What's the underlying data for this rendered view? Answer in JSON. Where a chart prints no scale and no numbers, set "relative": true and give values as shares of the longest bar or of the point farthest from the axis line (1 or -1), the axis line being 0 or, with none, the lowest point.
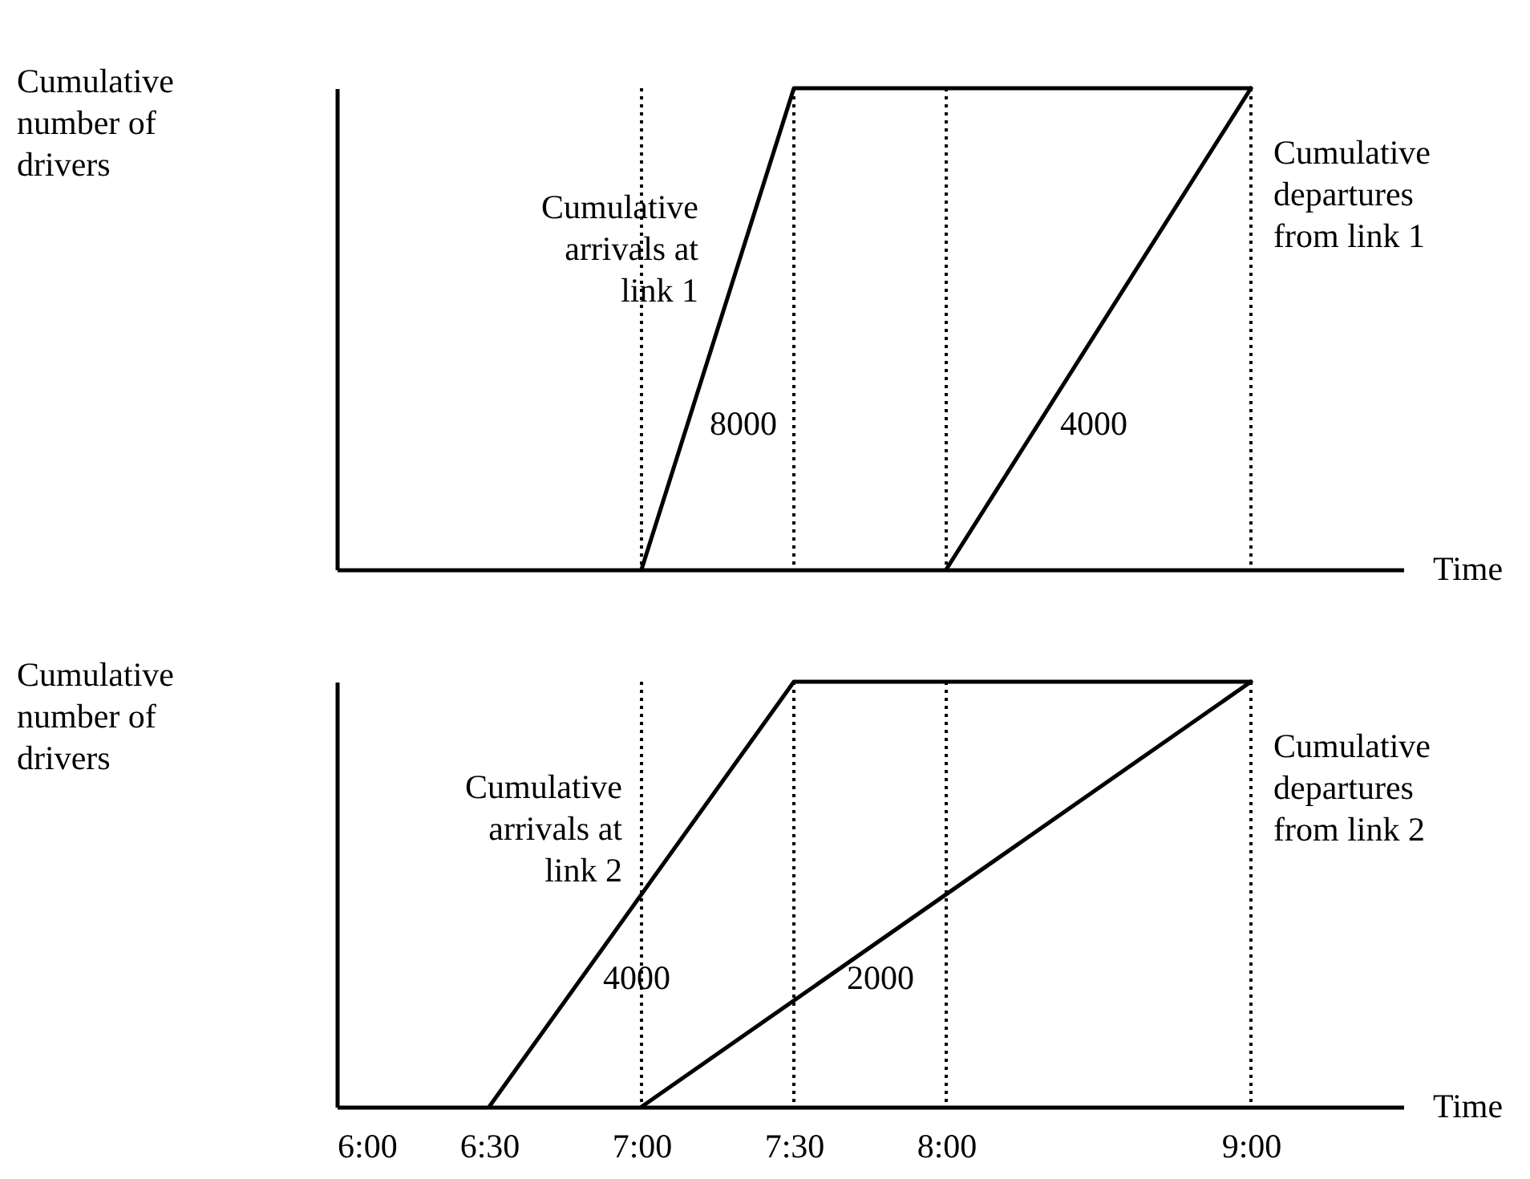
{
  "chart_data": [
    {
      "type": "line",
      "relative": true,
      "xlabel": "Time",
      "ylabel": "Cumulative number of drivers",
      "xlim": [
        6,
        9.5
      ],
      "tick_labels": false,
      "grid": false,
      "legend": false,
      "marker": "none",
      "line_style": "solid",
      "series": [
        {
          "name": "Cumulative arrivals at link 1",
          "color": "#000000",
          "x": [
            7,
            7.5,
            9
          ],
          "values": [
            0,
            1,
            1
          ]
        },
        {
          "name": "Cumulative departures from link 1",
          "color": "#000000",
          "x": [
            8,
            9
          ],
          "values": [
            0,
            1
          ]
        }
      ],
      "ref_lines": [
        {
          "axis": "x",
          "value": 7,
          "line_style": "dotted",
          "color": "#000000"
        },
        {
          "axis": "x",
          "value": 7.5,
          "line_style": "dotted",
          "color": "#000000"
        },
        {
          "axis": "x",
          "value": 8,
          "line_style": "dotted",
          "color": "#000000"
        },
        {
          "axis": "x",
          "value": 9,
          "line_style": "dotted",
          "color": "#000000"
        }
      ],
      "annotations": [
        "8000",
        "4000"
      ]
    },
    {
      "type": "line",
      "relative": true,
      "xlabel": "Time",
      "ylabel": "Cumulative number of drivers",
      "xlim": [
        6,
        9.5
      ],
      "xticks": [
        {
          "value": 6,
          "label": "6:00"
        },
        {
          "value": 6.5,
          "label": "6:30"
        },
        {
          "value": 7,
          "label": "7:00"
        },
        {
          "value": 7.5,
          "label": "7:30"
        },
        {
          "value": 8,
          "label": "8:00"
        },
        {
          "value": 9,
          "label": "9:00"
        }
      ],
      "tick_labels": "x",
      "grid": false,
      "legend": false,
      "marker": "none",
      "line_style": "solid",
      "series": [
        {
          "name": "Cumulative arrivals at link 2",
          "color": "#000000",
          "x": [
            6.5,
            7.5,
            9
          ],
          "values": [
            0,
            1,
            1
          ]
        },
        {
          "name": "Cumulative departures from link 2",
          "color": "#000000",
          "x": [
            7,
            9
          ],
          "values": [
            0,
            1
          ]
        }
      ],
      "ref_lines": [
        {
          "axis": "x",
          "value": 7,
          "line_style": "dotted",
          "color": "#000000"
        },
        {
          "axis": "x",
          "value": 7.5,
          "line_style": "dotted",
          "color": "#000000"
        },
        {
          "axis": "x",
          "value": 8,
          "line_style": "dotted",
          "color": "#000000"
        },
        {
          "axis": "x",
          "value": 9,
          "line_style": "dotted",
          "color": "#000000"
        }
      ],
      "annotations": [
        "4000",
        "2000"
      ]
    }
  ]
}
